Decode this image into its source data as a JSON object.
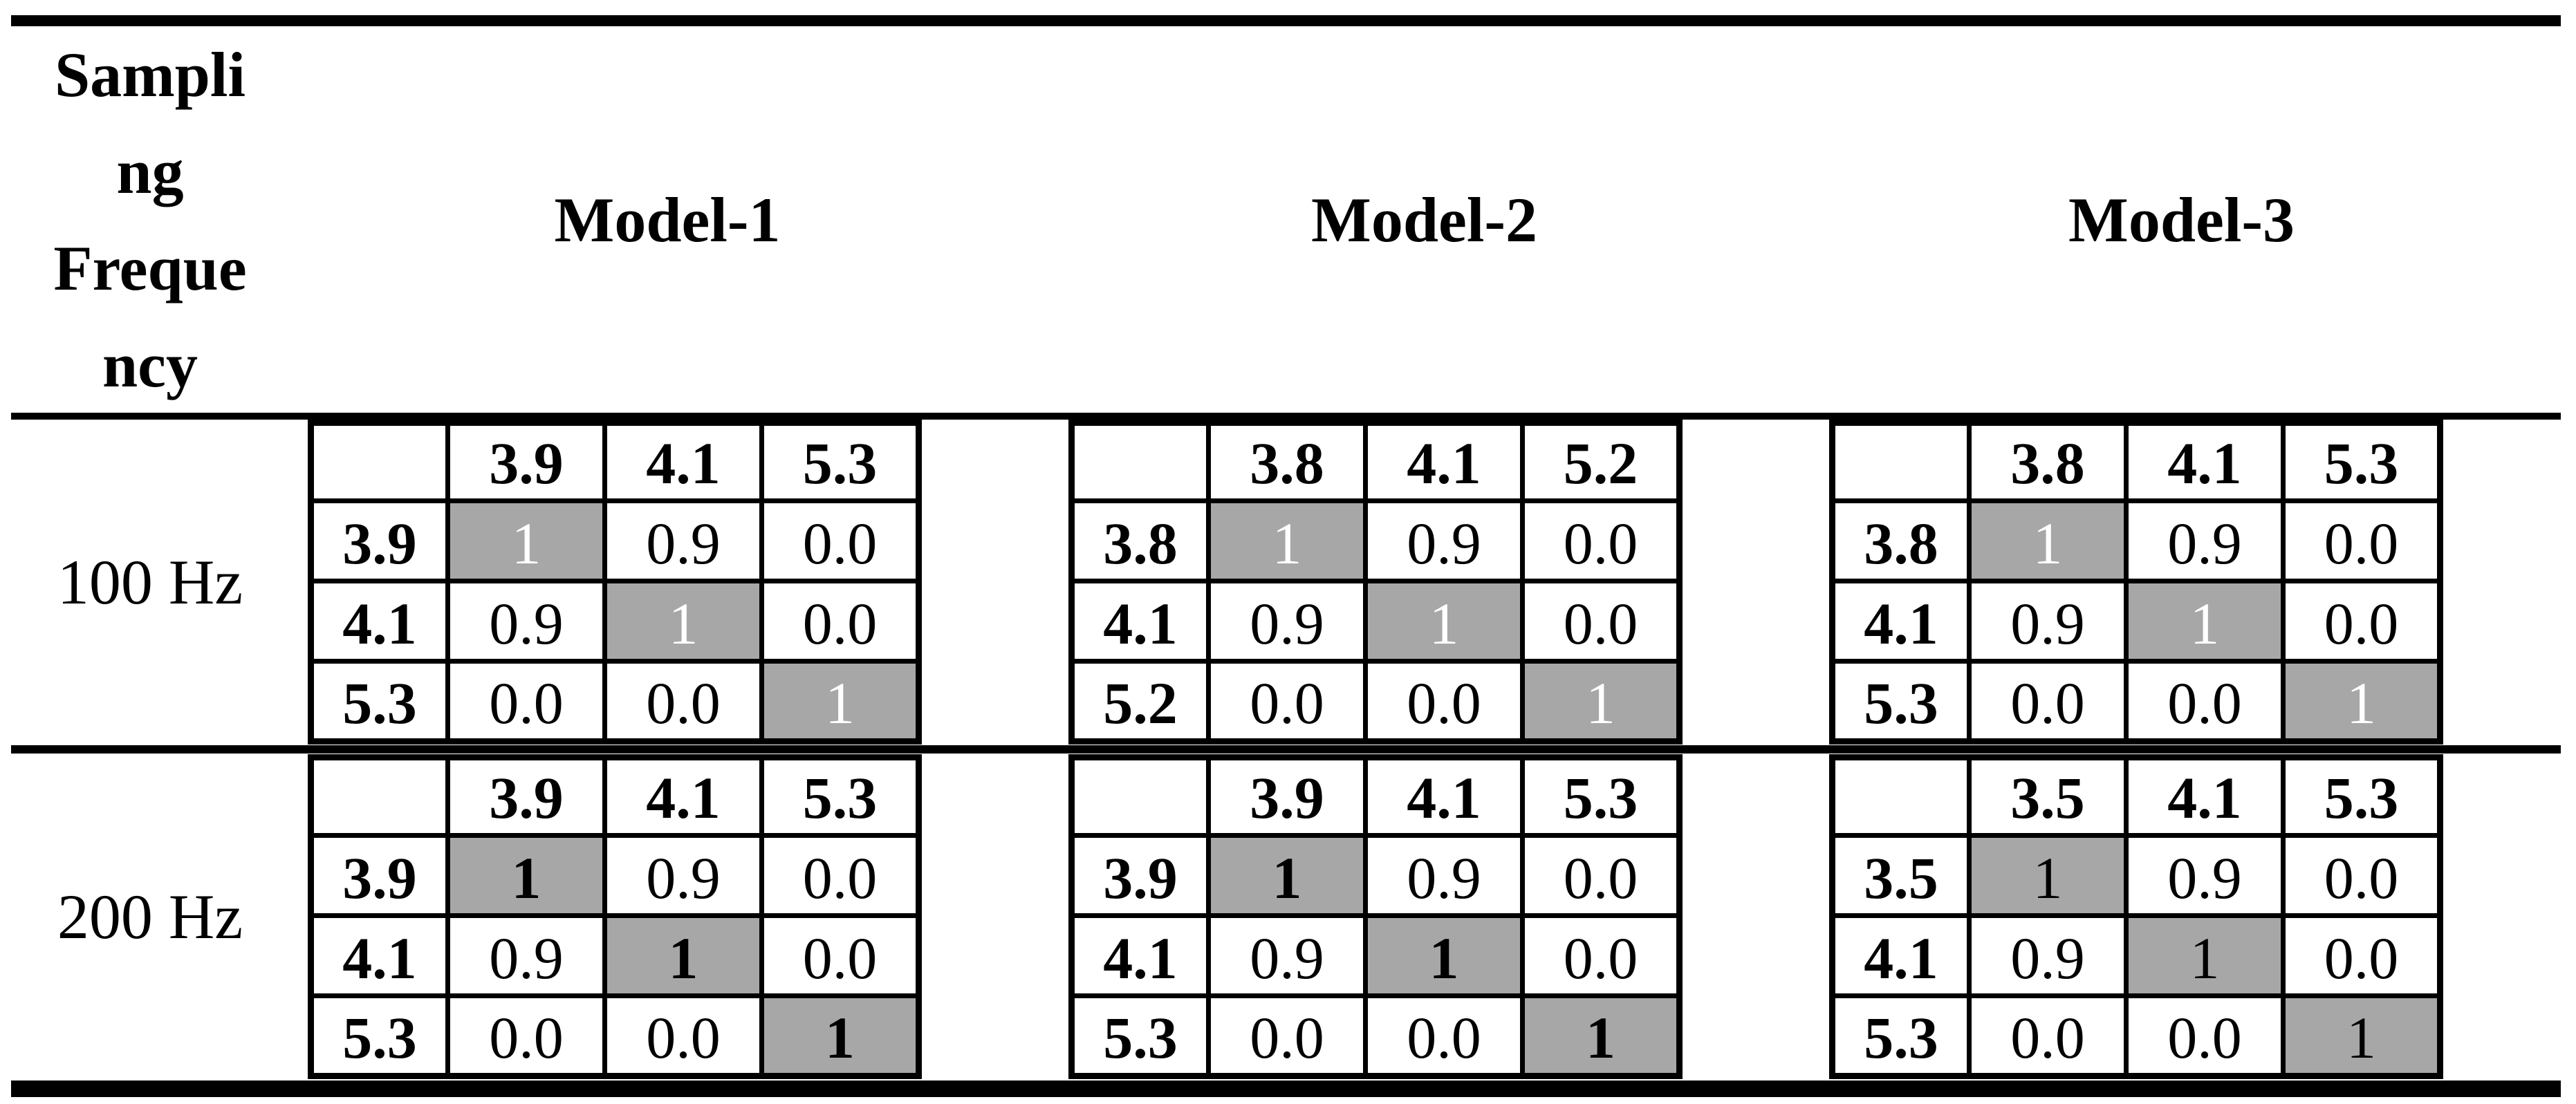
{
  "page": {
    "background": "#ffffff"
  },
  "colors": {
    "line": "#000000",
    "text": "#000000",
    "diagonal_fill": "#a7a7a7",
    "diagonal_text_light": "#ffffff",
    "diagonal_text_dark": "#000000"
  },
  "header": {
    "frequency_label": "Sampling Frequency",
    "frequency_label_lines": [
      "Sampli",
      "ng",
      "Freque",
      "ncy"
    ],
    "model_labels": [
      "Model-1",
      "Model-2",
      "Model-3"
    ]
  },
  "sections": [
    {
      "frequency": "100 Hz",
      "matrices": [
        {
          "model": "Model-1",
          "col_headers": [
            "3.9",
            "4.1",
            "5.3"
          ],
          "row_headers": [
            "3.9",
            "4.1",
            "5.3"
          ],
          "values": [
            [
              "1",
              "0.9",
              "0.0"
            ],
            [
              "0.9",
              "1",
              "0.0"
            ],
            [
              "0.0",
              "0.0",
              "1"
            ]
          ],
          "diagonal_text_color": "#ffffff",
          "diagonal_bold": false
        },
        {
          "model": "Model-2",
          "col_headers": [
            "3.8",
            "4.1",
            "5.2"
          ],
          "row_headers": [
            "3.8",
            "4.1",
            "5.2"
          ],
          "values": [
            [
              "1",
              "0.9",
              "0.0"
            ],
            [
              "0.9",
              "1",
              "0.0"
            ],
            [
              "0.0",
              "0.0",
              "1"
            ]
          ],
          "diagonal_text_color": "#ffffff",
          "diagonal_bold": false
        },
        {
          "model": "Model-3",
          "col_headers": [
            "3.8",
            "4.1",
            "5.3"
          ],
          "row_headers": [
            "3.8",
            "4.1",
            "5.3"
          ],
          "values": [
            [
              "1",
              "0.9",
              "0.0"
            ],
            [
              "0.9",
              "1",
              "0.0"
            ],
            [
              "0.0",
              "0.0",
              "1"
            ]
          ],
          "diagonal_text_color": "#ffffff",
          "diagonal_bold": false
        }
      ]
    },
    {
      "frequency": "200 Hz",
      "matrices": [
        {
          "model": "Model-1",
          "col_headers": [
            "3.9",
            "4.1",
            "5.3"
          ],
          "row_headers": [
            "3.9",
            "4.1",
            "5.3"
          ],
          "values": [
            [
              "1",
              "0.9",
              "0.0"
            ],
            [
              "0.9",
              "1",
              "0.0"
            ],
            [
              "0.0",
              "0.0",
              "1"
            ]
          ],
          "diagonal_text_color": "#000000",
          "diagonal_bold": true
        },
        {
          "model": "Model-2",
          "col_headers": [
            "3.9",
            "4.1",
            "5.3"
          ],
          "row_headers": [
            "3.9",
            "4.1",
            "5.3"
          ],
          "values": [
            [
              "1",
              "0.9",
              "0.0"
            ],
            [
              "0.9",
              "1",
              "0.0"
            ],
            [
              "0.0",
              "0.0",
              "1"
            ]
          ],
          "diagonal_text_color": "#000000",
          "diagonal_bold": true
        },
        {
          "model": "Model-3",
          "col_headers": [
            "3.5",
            "4.1",
            "5.3"
          ],
          "row_headers": [
            "3.5",
            "4.1",
            "5.3"
          ],
          "values": [
            [
              "1",
              "0.9",
              "0.0"
            ],
            [
              "0.9",
              "1",
              "0.0"
            ],
            [
              "0.0",
              "0.0",
              "1"
            ]
          ],
          "diagonal_text_color": "#000000",
          "diagonal_bold": false
        }
      ]
    }
  ]
}
